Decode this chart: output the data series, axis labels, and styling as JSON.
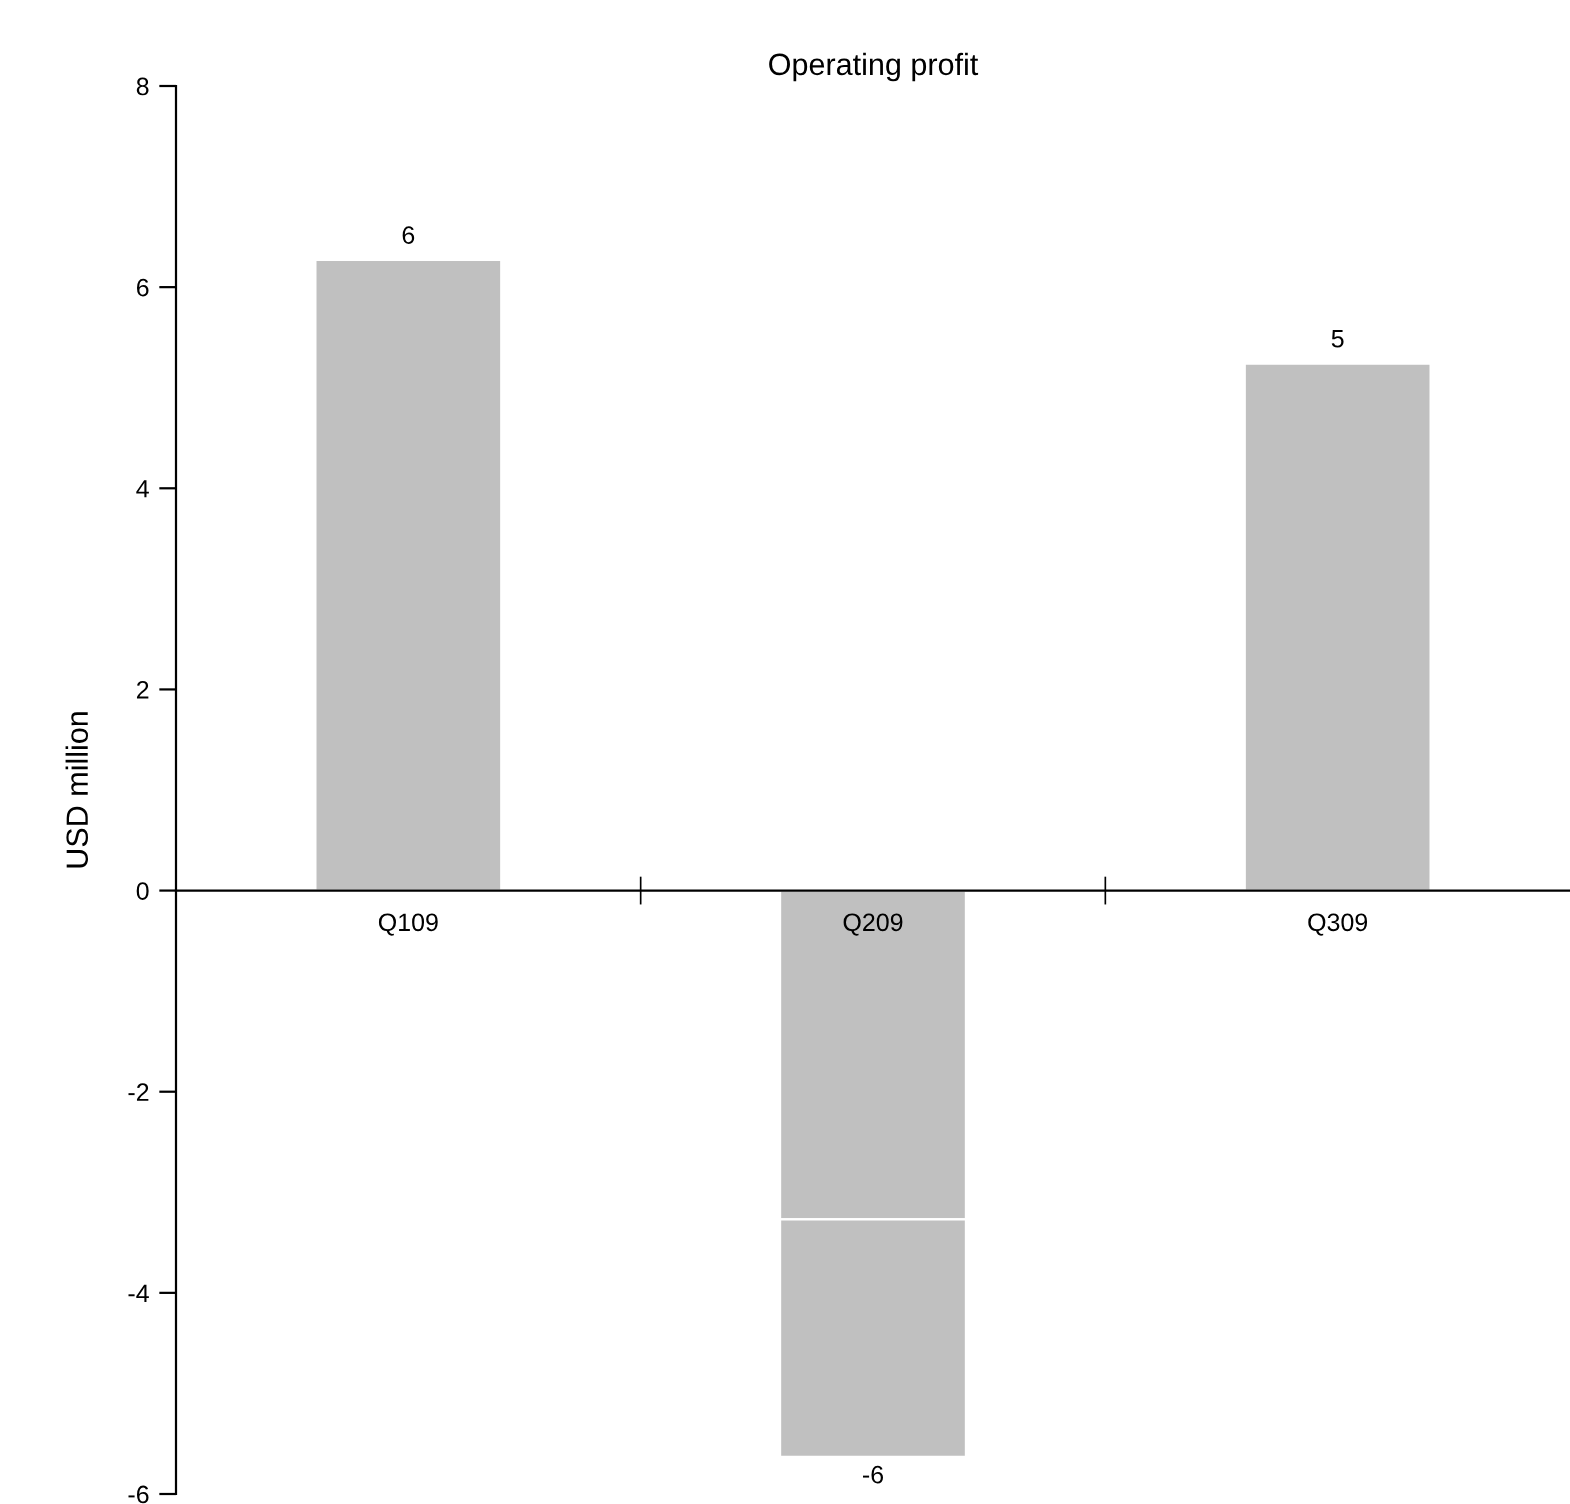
{
  "chart_data": {
    "type": "bar",
    "title": "Operating profit",
    "ylabel": "USD million",
    "categories": [
      "Q109",
      "Q209",
      "Q309"
    ],
    "stacked": true,
    "series": [
      {
        "color": "#c0c0c0",
        "values": [
          6.27,
          -3.27,
          5.24
        ]
      },
      {
        "color": "#c0c0c0",
        "values": [
          null,
          -2.36,
          null
        ]
      }
    ],
    "totals": [
      "6",
      "-6",
      "5"
    ],
    "ylim": [
      -6,
      8
    ],
    "yticks": [
      -6,
      -4,
      -2,
      0,
      2,
      4,
      6,
      8
    ],
    "grid": false,
    "legend": false
  }
}
